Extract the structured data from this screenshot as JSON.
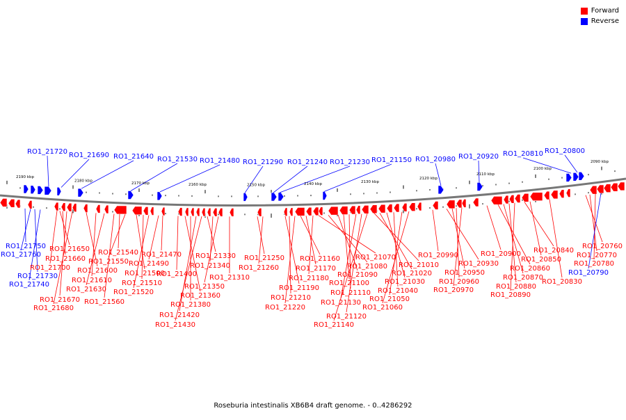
{
  "colors": {
    "forward": "#ff0000",
    "reverse": "#0000ff",
    "backbone": "#777777",
    "tick": "#000000"
  },
  "legend": [
    {
      "label": "Forward",
      "color": "#ff0000"
    },
    {
      "label": "Reverse",
      "color": "#0000ff"
    }
  ],
  "caption": "Roseburia intestinalis XB6B4 draft genome. - 0..4286292",
  "scale_labels": [
    "2190 kbp",
    "2180 kbp",
    "2170 kbp",
    "2160 kbp",
    "2150 kbp",
    "2140 kbp",
    "2130 kbp",
    "2120 kbp",
    "2110 kbp",
    "2100 kbp",
    "2090 kbp"
  ],
  "reverse_labels": [
    "RO1_21720",
    "RO1_21690",
    "RO1_21640",
    "RO1_21530",
    "RO1_21480",
    "RO1_21290",
    "RO1_21240",
    "RO1_21230",
    "RO1_21150",
    "RO1_20980",
    "RO1_20920",
    "RO1_20810",
    "RO1_20800"
  ],
  "lower_labels": [
    {
      "label": "RO1_21750",
      "strand": "reverse"
    },
    {
      "label": "RO1_21760",
      "strand": "reverse"
    },
    {
      "label": "RO1_21730",
      "strand": "reverse"
    },
    {
      "label": "RO1_21740",
      "strand": "reverse"
    },
    {
      "label": "RO1_21650",
      "strand": "forward"
    },
    {
      "label": "RO1_21660",
      "strand": "forward"
    },
    {
      "label": "RO1_21700",
      "strand": "forward"
    },
    {
      "label": "RO1_21670",
      "strand": "forward"
    },
    {
      "label": "RO1_21680",
      "strand": "forward"
    },
    {
      "label": "RO1_21600",
      "strand": "forward"
    },
    {
      "label": "RO1_21610",
      "strand": "forward"
    },
    {
      "label": "RO1_21630",
      "strand": "forward"
    },
    {
      "label": "RO1_21560",
      "strand": "forward"
    },
    {
      "label": "RO1_21540",
      "strand": "forward"
    },
    {
      "label": "RO1_21550",
      "strand": "forward"
    },
    {
      "label": "RO1_21500",
      "strand": "forward"
    },
    {
      "label": "RO1_21510",
      "strand": "forward"
    },
    {
      "label": "RO1_21520",
      "strand": "forward"
    },
    {
      "label": "RO1_21470",
      "strand": "forward"
    },
    {
      "label": "RO1_21490",
      "strand": "forward"
    },
    {
      "label": "RO1_21400",
      "strand": "forward"
    },
    {
      "label": "RO1_21360",
      "strand": "forward"
    },
    {
      "label": "RO1_21380",
      "strand": "forward"
    },
    {
      "label": "RO1_21420",
      "strand": "forward"
    },
    {
      "label": "RO1_21430",
      "strand": "forward"
    },
    {
      "label": "RO1_21330",
      "strand": "forward"
    },
    {
      "label": "RO1_21340",
      "strand": "forward"
    },
    {
      "label": "RO1_21350",
      "strand": "forward"
    },
    {
      "label": "RO1_21310",
      "strand": "forward"
    },
    {
      "label": "RO1_21250",
      "strand": "forward"
    },
    {
      "label": "RO1_21260",
      "strand": "forward"
    },
    {
      "label": "RO1_21190",
      "strand": "forward"
    },
    {
      "label": "RO1_21210",
      "strand": "forward"
    },
    {
      "label": "RO1_21220",
      "strand": "forward"
    },
    {
      "label": "RO1_21160",
      "strand": "forward"
    },
    {
      "label": "RO1_21170",
      "strand": "forward"
    },
    {
      "label": "RO1_21180",
      "strand": "forward"
    },
    {
      "label": "RO1_21070",
      "strand": "forward"
    },
    {
      "label": "RO1_21080",
      "strand": "forward"
    },
    {
      "label": "RO1_21090",
      "strand": "forward"
    },
    {
      "label": "RO1_21100",
      "strand": "forward"
    },
    {
      "label": "RO1_21110",
      "strand": "forward"
    },
    {
      "label": "RO1_21130",
      "strand": "forward"
    },
    {
      "label": "RO1_21120",
      "strand": "forward"
    },
    {
      "label": "RO1_21140",
      "strand": "forward"
    },
    {
      "label": "RO1_21010",
      "strand": "forward"
    },
    {
      "label": "RO1_21020",
      "strand": "forward"
    },
    {
      "label": "RO1_21030",
      "strand": "forward"
    },
    {
      "label": "RO1_21040",
      "strand": "forward"
    },
    {
      "label": "RO1_21050",
      "strand": "forward"
    },
    {
      "label": "RO1_21060",
      "strand": "forward"
    },
    {
      "label": "RO1_20990",
      "strand": "forward"
    },
    {
      "label": "RO1_20930",
      "strand": "forward"
    },
    {
      "label": "RO1_20950",
      "strand": "forward"
    },
    {
      "label": "RO1_20960",
      "strand": "forward"
    },
    {
      "label": "RO1_20970",
      "strand": "forward"
    },
    {
      "label": "RO1_20900",
      "strand": "forward"
    },
    {
      "label": "RO1_20860",
      "strand": "forward"
    },
    {
      "label": "RO1_20870",
      "strand": "forward"
    },
    {
      "label": "RO1_20880",
      "strand": "forward"
    },
    {
      "label": "RO1_20890",
      "strand": "forward"
    },
    {
      "label": "RO1_20840",
      "strand": "forward"
    },
    {
      "label": "RO1_20850",
      "strand": "forward"
    },
    {
      "label": "RO1_20830",
      "strand": "forward"
    },
    {
      "label": "RO1_20760",
      "strand": "forward"
    },
    {
      "label": "RO1_20770",
      "strand": "forward"
    },
    {
      "label": "RO1_20780",
      "strand": "forward"
    },
    {
      "label": "RO1_20790",
      "strand": "reverse"
    }
  ]
}
